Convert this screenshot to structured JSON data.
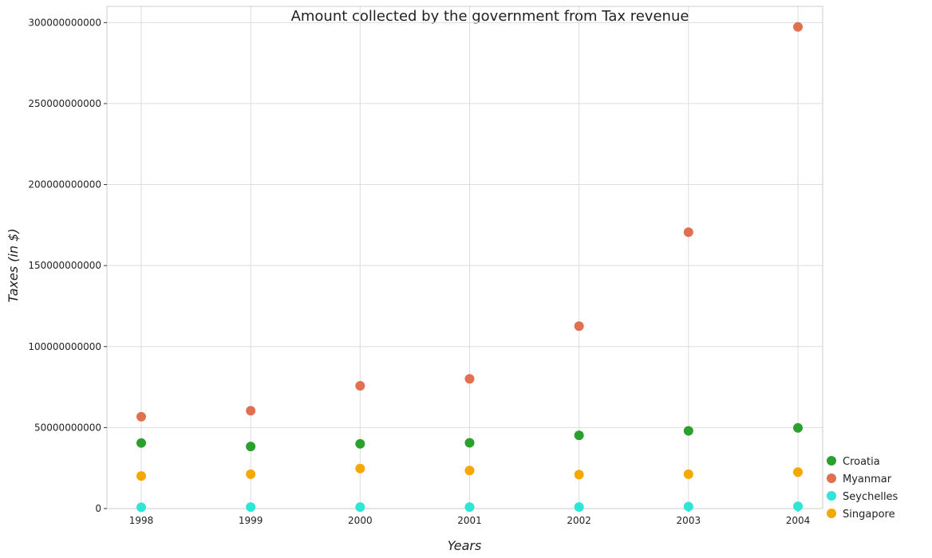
{
  "chart_data": {
    "type": "scatter",
    "title": "Amount collected by the government from Tax revenue",
    "xlabel": "Years",
    "ylabel": "Taxes (in $)",
    "categories": [
      "1998",
      "1999",
      "2000",
      "2001",
      "2002",
      "2003",
      "2004"
    ],
    "ylim": [
      0,
      310000000000
    ],
    "yticks": [
      0,
      50000000000,
      100000000000,
      150000000000,
      200000000000,
      250000000000,
      300000000000
    ],
    "ytick_labels": [
      "0",
      "50000000000",
      "100000000000",
      "150000000000",
      "200000000000",
      "250000000000",
      "300000000000"
    ],
    "grid": true,
    "legend_position": "bottom-right",
    "series": [
      {
        "name": "Croatia",
        "color": "#2ca02c",
        "values": [
          40500000000,
          38300000000,
          40000000000,
          40600000000,
          45200000000,
          48000000000,
          49800000000
        ]
      },
      {
        "name": "Myanmar",
        "color": "#e07050",
        "values": [
          56700000000,
          60400000000,
          75800000000,
          80100000000,
          112600000000,
          170600000000,
          297300000000
        ]
      },
      {
        "name": "Seychelles",
        "color": "#2ee6d6",
        "values": [
          800000000,
          900000000,
          900000000,
          900000000,
          1000000000,
          1200000000,
          1400000000
        ]
      },
      {
        "name": "Singapore",
        "color": "#f5a800",
        "values": [
          20100000000,
          21200000000,
          24700000000,
          23500000000,
          21000000000,
          21200000000,
          22500000000
        ]
      }
    ]
  }
}
